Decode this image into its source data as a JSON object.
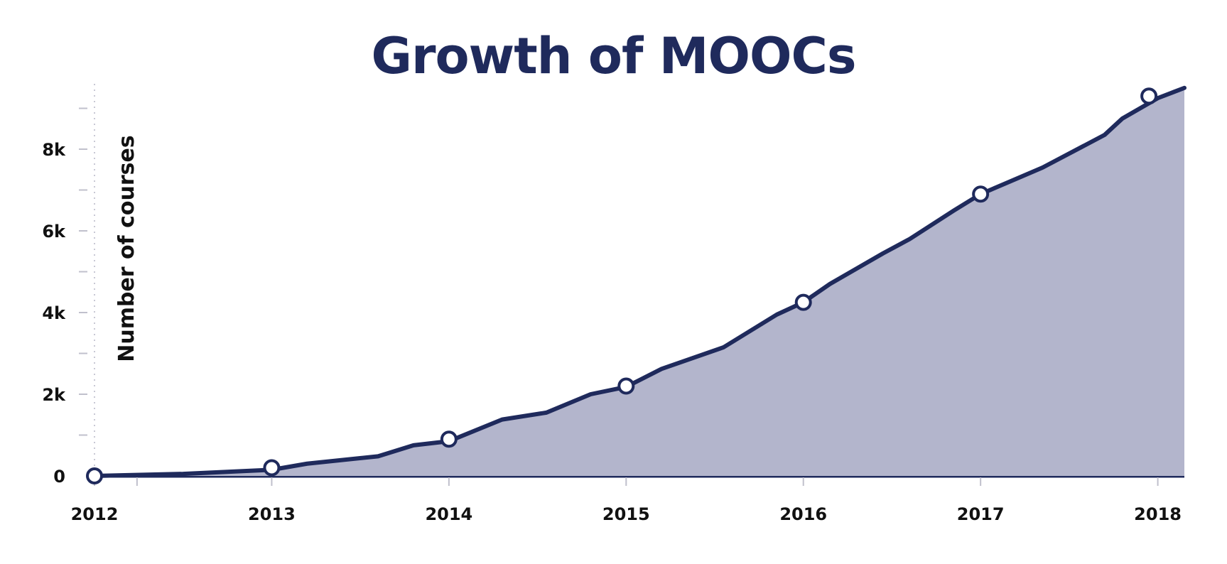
{
  "chart_data": {
    "type": "area",
    "title": "Growth of MOOCs",
    "xlabel": "",
    "ylabel": "Number of courses",
    "x_ticks": [
      "2012",
      "2013",
      "2014",
      "2015",
      "2016",
      "2017",
      "2018"
    ],
    "y_ticks": [
      "0",
      "2k",
      "4k",
      "6k",
      "8k"
    ],
    "xlim": [
      2012,
      2018.15
    ],
    "ylim": [
      0,
      9600
    ],
    "grid": false,
    "legend": "none",
    "colors": {
      "line": "#1f2a5c",
      "fill": "#b3b5cc",
      "marker_fill": "#ffffff",
      "text": "#111111"
    },
    "series": [
      {
        "values": [
          {
            "x": 2012.0,
            "y": 0
          },
          {
            "x": 2012.5,
            "y": 50
          },
          {
            "x": 2013.0,
            "y": 150
          },
          {
            "x": 2013.2,
            "y": 300
          },
          {
            "x": 2013.6,
            "y": 480
          },
          {
            "x": 2013.8,
            "y": 750
          },
          {
            "x": 2014.0,
            "y": 850
          },
          {
            "x": 2014.3,
            "y": 1380
          },
          {
            "x": 2014.55,
            "y": 1550
          },
          {
            "x": 2014.8,
            "y": 2000
          },
          {
            "x": 2015.0,
            "y": 2180
          },
          {
            "x": 2015.2,
            "y": 2620
          },
          {
            "x": 2015.55,
            "y": 3150
          },
          {
            "x": 2015.85,
            "y": 3950
          },
          {
            "x": 2016.0,
            "y": 4250
          },
          {
            "x": 2016.15,
            "y": 4700
          },
          {
            "x": 2016.45,
            "y": 5450
          },
          {
            "x": 2016.6,
            "y": 5800
          },
          {
            "x": 2016.85,
            "y": 6500
          },
          {
            "x": 2017.0,
            "y": 6900
          },
          {
            "x": 2017.35,
            "y": 7550
          },
          {
            "x": 2017.7,
            "y": 8350
          },
          {
            "x": 2017.8,
            "y": 8750
          },
          {
            "x": 2018.0,
            "y": 9250
          },
          {
            "x": 2018.15,
            "y": 9500
          }
        ],
        "markers": [
          {
            "x": 2012.0,
            "y": 0
          },
          {
            "x": 2013.0,
            "y": 200
          },
          {
            "x": 2014.0,
            "y": 900
          },
          {
            "x": 2015.0,
            "y": 2200
          },
          {
            "x": 2016.0,
            "y": 4250
          },
          {
            "x": 2017.0,
            "y": 6900
          },
          {
            "x": 2017.95,
            "y": 9300
          }
        ]
      }
    ]
  }
}
